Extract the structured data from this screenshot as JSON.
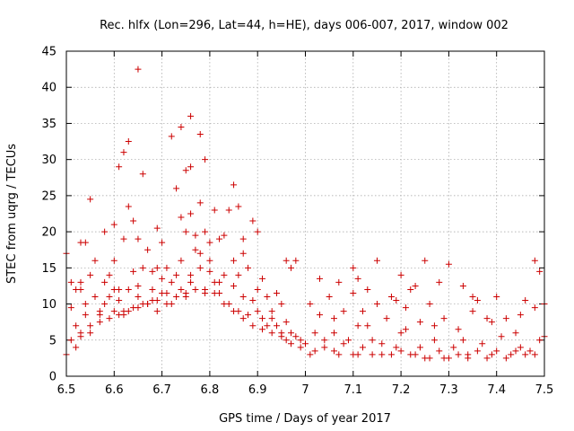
{
  "chart_data": {
    "type": "scatter",
    "title": "Rec. hlfx (Lon=296, Lat=44, h=HE), days 006-007, 2017, window 002",
    "xlabel": "GPS time / Days of year 2017",
    "ylabel": "STEC from uqrg / TECUs",
    "xlim": [
      6.5,
      7.5
    ],
    "ylim": [
      0,
      45
    ],
    "xticks": [
      6.5,
      6.6,
      6.7,
      6.8,
      6.9,
      7.0,
      7.1,
      7.2,
      7.3,
      7.4,
      7.5
    ],
    "xtick_labels": [
      "6.5",
      "6.6",
      "6.7",
      "6.8",
      "6.9",
      "7",
      "7.1",
      "7.2",
      "7.3",
      "7.4",
      "7.5"
    ],
    "yticks": [
      0,
      5,
      10,
      15,
      20,
      25,
      30,
      35,
      40,
      45
    ],
    "ytick_labels": [
      "0",
      "5",
      "10",
      "15",
      "20",
      "25",
      "30",
      "35",
      "40",
      "45"
    ],
    "grid": true,
    "marker": "+",
    "color": "#cc0000",
    "series": [
      {
        "name": "STEC",
        "points": [
          [
            6.5,
            17.0
          ],
          [
            6.5,
            3.0
          ],
          [
            6.51,
            13.0
          ],
          [
            6.51,
            5.0
          ],
          [
            6.52,
            12.0
          ],
          [
            6.52,
            4.0
          ],
          [
            6.53,
            18.5
          ],
          [
            6.53,
            13.0
          ],
          [
            6.53,
            6.0
          ],
          [
            6.54,
            18.5
          ],
          [
            6.54,
            10.0
          ],
          [
            6.55,
            24.5
          ],
          [
            6.55,
            7.0
          ],
          [
            6.55,
            14.0
          ],
          [
            6.56,
            16.0
          ],
          [
            6.57,
            8.5
          ],
          [
            6.58,
            13.0
          ],
          [
            6.58,
            20.0
          ],
          [
            6.59,
            11.0
          ],
          [
            6.6,
            21.0
          ],
          [
            6.6,
            9.0
          ],
          [
            6.6,
            16.0
          ],
          [
            6.61,
            29.0
          ],
          [
            6.61,
            12.0
          ],
          [
            6.62,
            19.0
          ],
          [
            6.62,
            31.0
          ],
          [
            6.62,
            9.0
          ],
          [
            6.63,
            23.5
          ],
          [
            6.63,
            32.5
          ],
          [
            6.64,
            14.5
          ],
          [
            6.64,
            21.5
          ],
          [
            6.65,
            42.5
          ],
          [
            6.65,
            19.0
          ],
          [
            6.65,
            11.0
          ],
          [
            6.66,
            28.0
          ],
          [
            6.66,
            10.0
          ],
          [
            6.67,
            17.5
          ],
          [
            6.68,
            14.5
          ],
          [
            6.68,
            10.5
          ],
          [
            6.69,
            20.5
          ],
          [
            6.69,
            15.0
          ],
          [
            6.7,
            18.5
          ],
          [
            6.7,
            11.5
          ],
          [
            6.71,
            15.0
          ],
          [
            6.72,
            33.2
          ],
          [
            6.72,
            13.0
          ],
          [
            6.73,
            26.0
          ],
          [
            6.74,
            22.0
          ],
          [
            6.74,
            34.5
          ],
          [
            6.74,
            12.0
          ],
          [
            6.75,
            28.5
          ],
          [
            6.75,
            20.0
          ],
          [
            6.76,
            36.0
          ],
          [
            6.76,
            29.0
          ],
          [
            6.76,
            22.5
          ],
          [
            6.76,
            14.0
          ],
          [
            6.77,
            19.5
          ],
          [
            6.78,
            33.5
          ],
          [
            6.78,
            24.0
          ],
          [
            6.78,
            17.0
          ],
          [
            6.79,
            30.0
          ],
          [
            6.79,
            20.0
          ],
          [
            6.8,
            18.5
          ],
          [
            6.8,
            14.5
          ],
          [
            6.81,
            23.0
          ],
          [
            6.82,
            19.0
          ],
          [
            6.82,
            13.0
          ],
          [
            6.83,
            19.5
          ],
          [
            6.84,
            23.0
          ],
          [
            6.85,
            26.5
          ],
          [
            6.85,
            16.0
          ],
          [
            6.86,
            23.5
          ],
          [
            6.86,
            14.0
          ],
          [
            6.87,
            17.0
          ],
          [
            6.87,
            19.0
          ],
          [
            6.88,
            15.0
          ],
          [
            6.89,
            21.5
          ],
          [
            6.9,
            20.0
          ],
          [
            6.9,
            12.0
          ],
          [
            6.91,
            13.5
          ],
          [
            6.92,
            11.0
          ],
          [
            6.93,
            9.0
          ],
          [
            6.94,
            11.5
          ],
          [
            6.95,
            10.0
          ],
          [
            6.96,
            16.0
          ],
          [
            6.96,
            5.0
          ],
          [
            6.97,
            15.0
          ],
          [
            6.98,
            16.0
          ],
          [
            6.99,
            5.0
          ],
          [
            6.51,
            9.5
          ],
          [
            6.52,
            7.0
          ],
          [
            6.53,
            12.0
          ],
          [
            6.54,
            8.5
          ],
          [
            6.56,
            11.0
          ],
          [
            6.57,
            9.0
          ],
          [
            6.58,
            10.0
          ],
          [
            6.59,
            14.0
          ],
          [
            6.6,
            12.0
          ],
          [
            6.61,
            10.5
          ],
          [
            6.62,
            8.5
          ],
          [
            6.63,
            12.0
          ],
          [
            6.64,
            9.5
          ],
          [
            6.65,
            12.5
          ],
          [
            6.66,
            15.0
          ],
          [
            6.67,
            10.0
          ],
          [
            6.68,
            12.0
          ],
          [
            6.69,
            9.0
          ],
          [
            6.7,
            13.5
          ],
          [
            6.71,
            11.5
          ],
          [
            6.72,
            10.0
          ],
          [
            6.73,
            14.0
          ],
          [
            6.74,
            16.0
          ],
          [
            6.75,
            11.0
          ],
          [
            6.76,
            13.0
          ],
          [
            6.77,
            17.5
          ],
          [
            6.78,
            15.0
          ],
          [
            6.79,
            11.5
          ],
          [
            6.8,
            16.0
          ],
          [
            6.81,
            13.0
          ],
          [
            6.82,
            11.5
          ],
          [
            6.83,
            14.0
          ],
          [
            6.84,
            10.0
          ],
          [
            6.85,
            12.5
          ],
          [
            6.86,
            9.0
          ],
          [
            6.87,
            11.0
          ],
          [
            6.88,
            8.5
          ],
          [
            6.89,
            10.5
          ],
          [
            6.9,
            9.0
          ],
          [
            6.91,
            8.0
          ],
          [
            6.92,
            7.0
          ],
          [
            6.93,
            8.0
          ],
          [
            6.94,
            7.0
          ],
          [
            6.95,
            6.0
          ],
          [
            6.96,
            7.5
          ],
          [
            6.97,
            6.0
          ],
          [
            6.98,
            5.5
          ],
          [
            6.53,
            5.5
          ],
          [
            6.55,
            6.0
          ],
          [
            6.57,
            7.5
          ],
          [
            6.59,
            8.0
          ],
          [
            6.61,
            8.5
          ],
          [
            6.63,
            9.0
          ],
          [
            6.65,
            9.5
          ],
          [
            6.67,
            10.0
          ],
          [
            6.69,
            10.5
          ],
          [
            6.71,
            10.0
          ],
          [
            6.73,
            11.0
          ],
          [
            6.75,
            11.5
          ],
          [
            6.77,
            12.0
          ],
          [
            6.79,
            12.0
          ],
          [
            6.81,
            11.5
          ],
          [
            6.83,
            10.0
          ],
          [
            6.85,
            9.0
          ],
          [
            6.87,
            8.0
          ],
          [
            6.89,
            7.0
          ],
          [
            6.91,
            6.5
          ],
          [
            6.93,
            6.0
          ],
          [
            6.95,
            5.5
          ],
          [
            6.97,
            4.5
          ],
          [
            6.99,
            4.0
          ],
          [
            7.01,
            10.0
          ],
          [
            7.01,
            3.0
          ],
          [
            7.02,
            6.0
          ],
          [
            7.03,
            13.5
          ],
          [
            7.03,
            8.5
          ],
          [
            7.04,
            4.0
          ],
          [
            7.05,
            11.0
          ],
          [
            7.06,
            6.0
          ],
          [
            7.07,
            13.0
          ],
          [
            7.07,
            3.0
          ],
          [
            7.08,
            9.0
          ],
          [
            7.09,
            5.0
          ],
          [
            7.1,
            15.0
          ],
          [
            7.1,
            11.5
          ],
          [
            7.11,
            7.0
          ],
          [
            7.11,
            3.0
          ],
          [
            7.12,
            9.0
          ],
          [
            7.13,
            12.0
          ],
          [
            7.14,
            5.0
          ],
          [
            7.15,
            16.0
          ],
          [
            7.15,
            10.0
          ],
          [
            7.16,
            3.0
          ],
          [
            7.17,
            8.0
          ],
          [
            7.18,
            11.0
          ],
          [
            7.19,
            4.0
          ],
          [
            7.2,
            14.0
          ],
          [
            7.2,
            6.0
          ],
          [
            7.21,
            9.5
          ],
          [
            7.22,
            12.0
          ],
          [
            7.23,
            3.0
          ],
          [
            7.24,
            7.5
          ],
          [
            7.25,
            16.0
          ],
          [
            7.25,
            2.5
          ],
          [
            7.26,
            10.0
          ],
          [
            7.27,
            5.0
          ],
          [
            7.28,
            13.0
          ],
          [
            7.29,
            8.0
          ],
          [
            7.29,
            2.5
          ],
          [
            7.3,
            15.5
          ],
          [
            7.31,
            4.0
          ],
          [
            7.32,
            6.5
          ],
          [
            7.33,
            12.5
          ],
          [
            7.34,
            3.0
          ],
          [
            7.35,
            9.0
          ],
          [
            7.36,
            10.5
          ],
          [
            7.37,
            4.5
          ],
          [
            7.38,
            8.0
          ],
          [
            7.39,
            3.0
          ],
          [
            7.4,
            11.0
          ],
          [
            7.41,
            5.5
          ],
          [
            7.42,
            8.0
          ],
          [
            7.43,
            3.0
          ],
          [
            7.44,
            6.0
          ],
          [
            7.45,
            4.0
          ],
          [
            7.46,
            10.5
          ],
          [
            7.47,
            3.5
          ],
          [
            7.48,
            16.0
          ],
          [
            7.48,
            9.5
          ],
          [
            7.49,
            14.5
          ],
          [
            7.49,
            5.0
          ],
          [
            7.0,
            4.5
          ],
          [
            7.02,
            3.5
          ],
          [
            7.04,
            5.0
          ],
          [
            7.06,
            3.5
          ],
          [
            7.08,
            4.5
          ],
          [
            7.1,
            3.0
          ],
          [
            7.12,
            4.0
          ],
          [
            7.14,
            3.0
          ],
          [
            7.16,
            4.5
          ],
          [
            7.18,
            3.0
          ],
          [
            7.2,
            3.5
          ],
          [
            7.22,
            3.0
          ],
          [
            7.24,
            4.0
          ],
          [
            7.26,
            2.5
          ],
          [
            7.28,
            3.5
          ],
          [
            7.3,
            2.5
          ],
          [
            7.32,
            3.0
          ],
          [
            7.34,
            2.5
          ],
          [
            7.36,
            3.5
          ],
          [
            7.38,
            2.5
          ],
          [
            7.4,
            3.5
          ],
          [
            7.42,
            2.5
          ],
          [
            7.44,
            3.5
          ],
          [
            7.46,
            3.0
          ],
          [
            7.48,
            3.0
          ],
          [
            7.5,
            10.0
          ],
          [
            7.5,
            5.5
          ],
          [
            7.06,
            8.0
          ],
          [
            7.13,
            7.0
          ],
          [
            7.21,
            6.5
          ],
          [
            7.27,
            7.0
          ],
          [
            7.33,
            5.0
          ],
          [
            7.39,
            7.5
          ],
          [
            7.45,
            8.5
          ],
          [
            7.19,
            10.5
          ],
          [
            7.23,
            12.5
          ],
          [
            7.35,
            11.0
          ],
          [
            7.11,
            13.5
          ]
        ]
      }
    ]
  }
}
